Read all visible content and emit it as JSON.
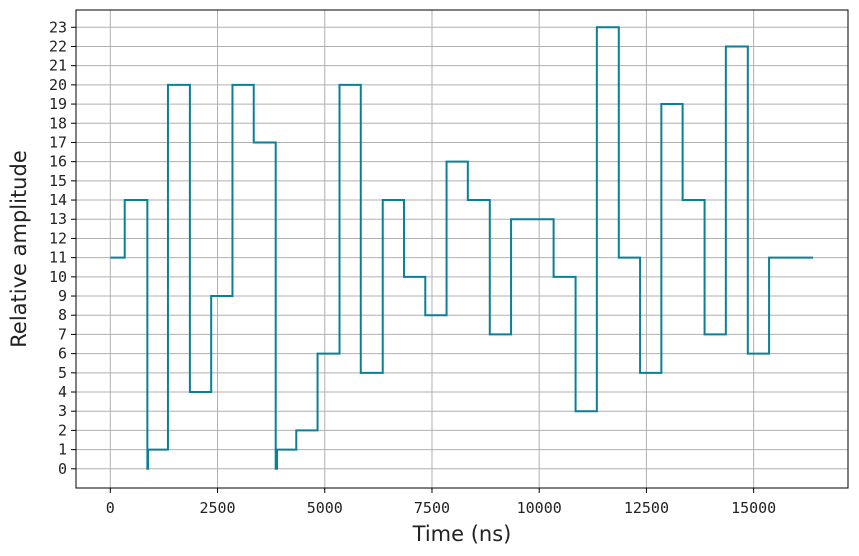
{
  "chart_data": {
    "type": "line",
    "step": "post",
    "title": "",
    "xlabel": "Time (ns)",
    "ylabel": "Relative amplitude",
    "xlim": [
      -800,
      17200
    ],
    "ylim": [
      -1,
      23.9
    ],
    "xticks": [
      0,
      2500,
      5000,
      7500,
      10000,
      12500,
      15000
    ],
    "yticks": [
      0,
      1,
      2,
      3,
      4,
      5,
      6,
      7,
      8,
      9,
      10,
      11,
      12,
      13,
      14,
      15,
      16,
      17,
      18,
      19,
      20,
      21,
      22,
      23
    ],
    "grid": true,
    "line_color": "#0a7f96",
    "series": [
      {
        "x": [
          0,
          336,
          864,
          880,
          1344,
          1856,
          2352,
          2848,
          3344,
          3856,
          3888,
          4336,
          4832,
          5344,
          5840,
          6352,
          6848,
          7344,
          7840,
          8336,
          8848,
          9344,
          10336,
          10848,
          11344,
          11856,
          12352,
          12848,
          13344,
          13856,
          14352,
          14864,
          15360,
          16384
        ],
        "y": [
          11,
          14,
          0,
          1,
          20,
          4,
          9,
          20,
          17,
          0,
          1,
          2,
          6,
          20,
          5,
          14,
          10,
          8,
          16,
          14,
          7,
          13,
          10,
          3,
          23,
          11,
          5,
          19,
          14,
          7,
          22,
          6,
          11,
          11
        ]
      }
    ]
  }
}
